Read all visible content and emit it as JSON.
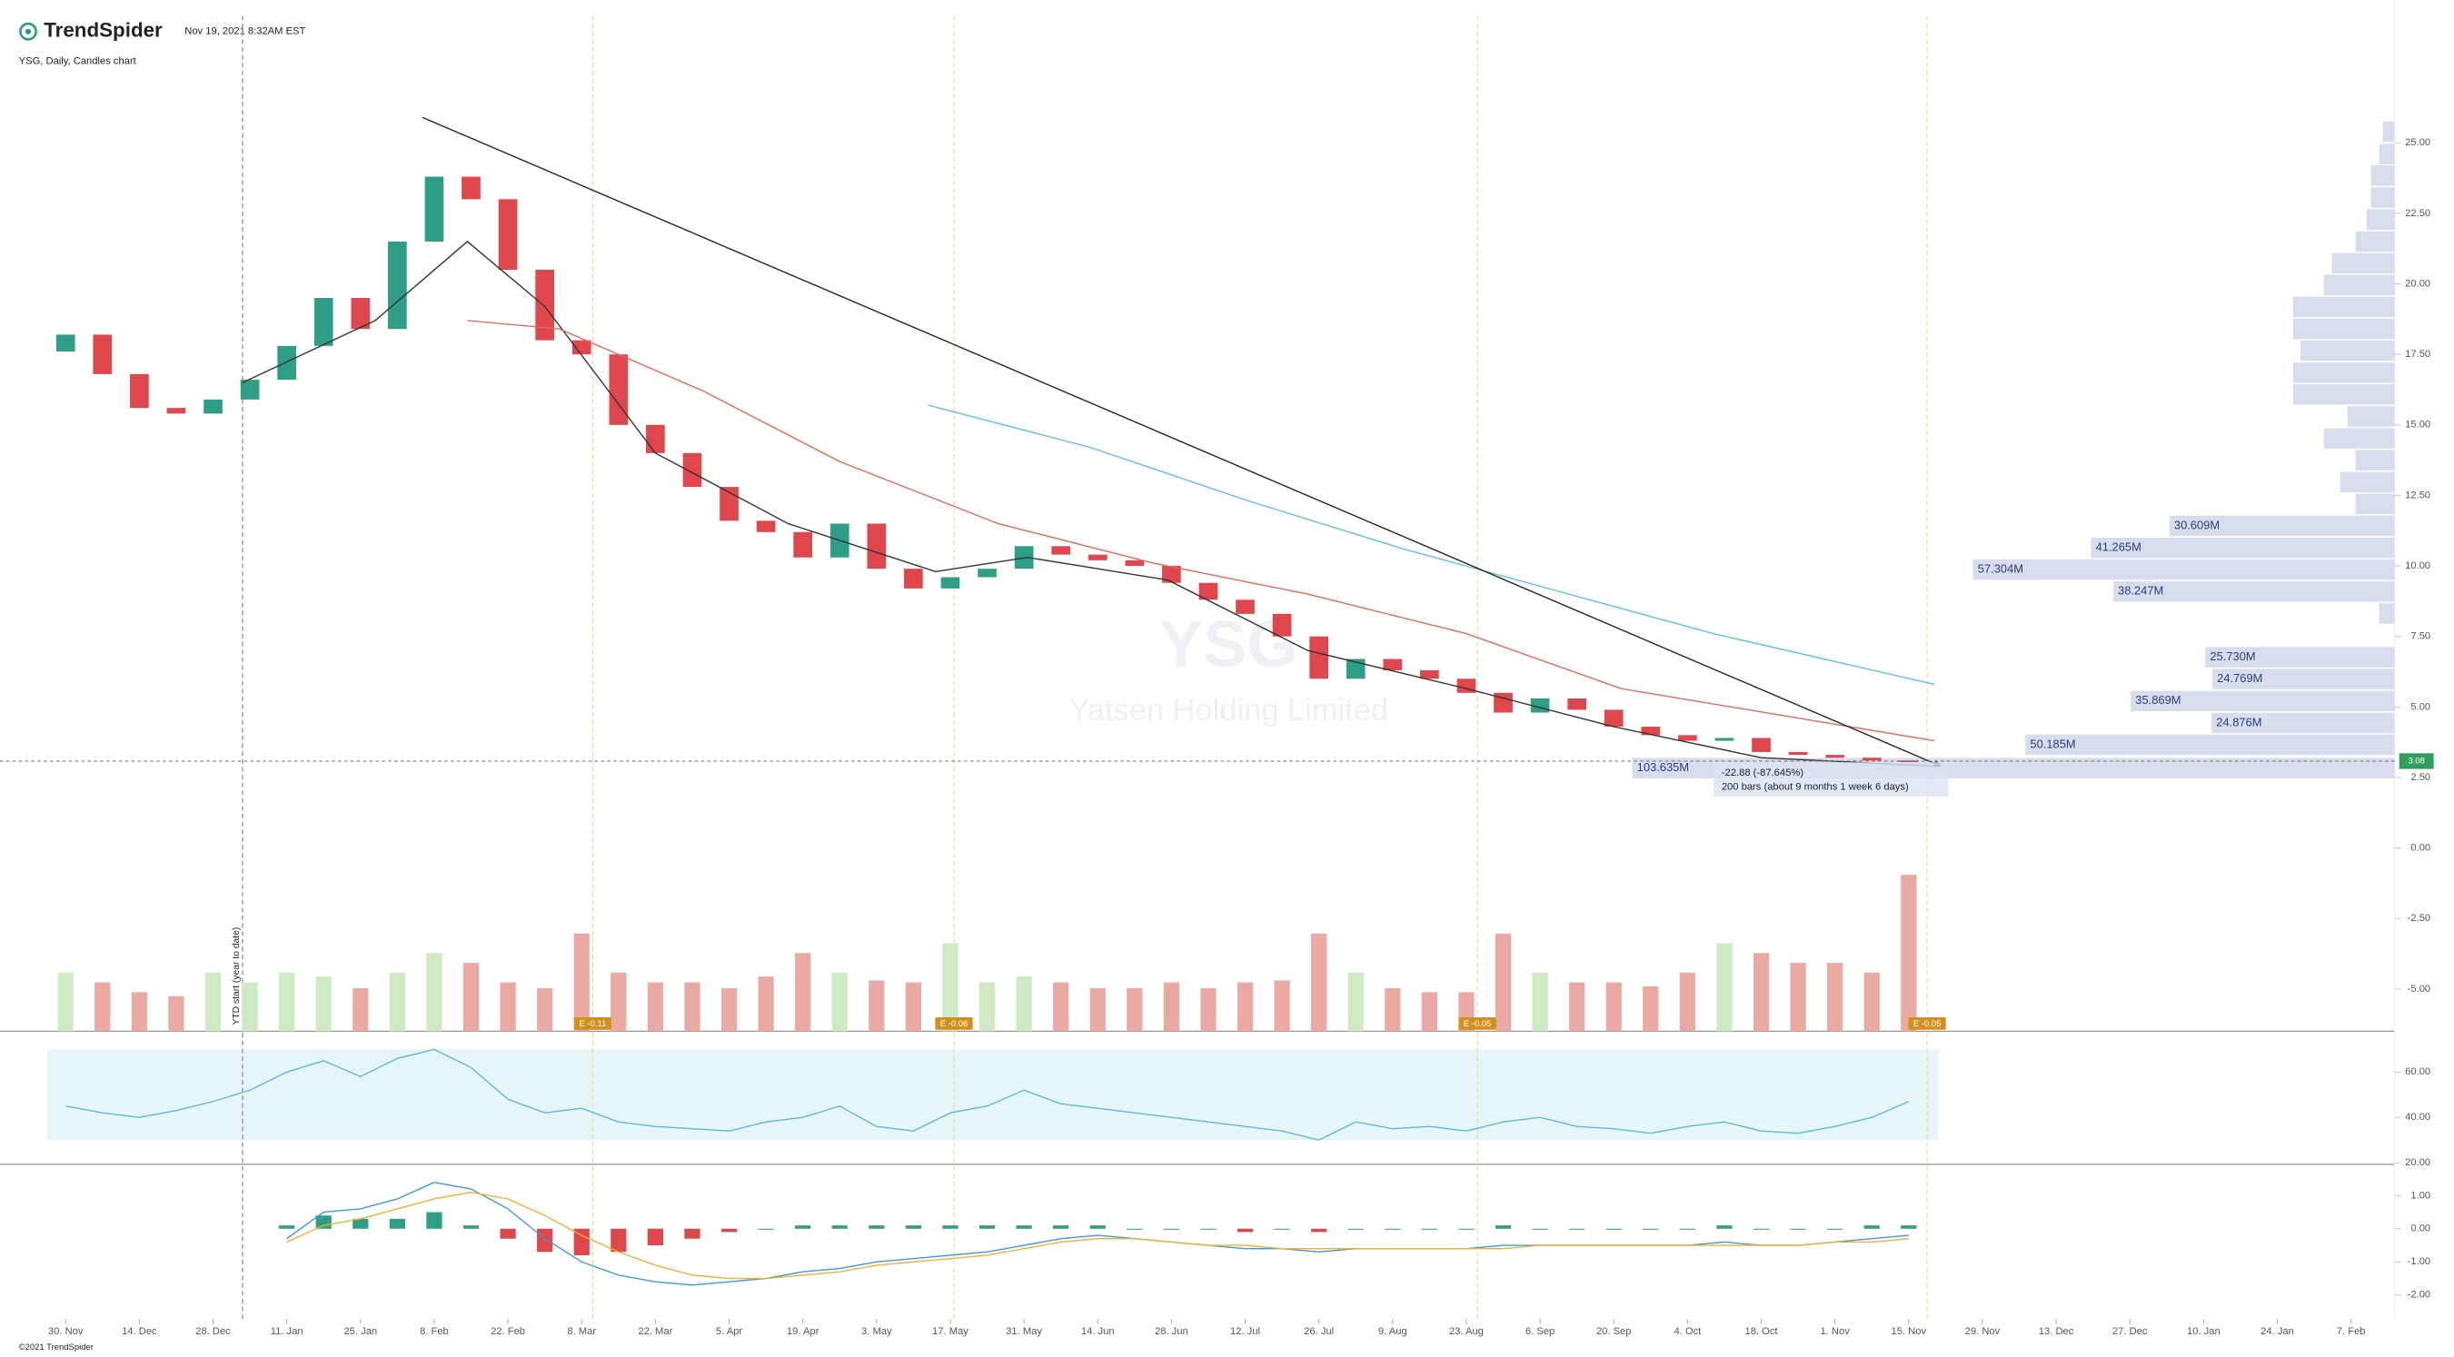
{
  "header": {
    "brand": "TrendSpider",
    "timestamp": "Nov 19, 2021 8:32AM EST",
    "chart_label": "YSG, Daily, Candles chart",
    "footer": "©2021 TrendSpider"
  },
  "chart_data": {
    "type": "candlestick",
    "watermark": {
      "symbol": "YSG",
      "name": "Yatsen Holding Limited"
    },
    "xlim": [
      -1.78,
      63.18
    ],
    "xticks": [
      {
        "value": 0,
        "label": "30. Nov"
      },
      {
        "value": 2,
        "label": "14. Dec"
      },
      {
        "value": 4,
        "label": "28. Dec"
      },
      {
        "value": 6,
        "label": "11. Jan"
      },
      {
        "value": 8,
        "label": "25. Jan"
      },
      {
        "value": 10,
        "label": "8. Feb"
      },
      {
        "value": 12,
        "label": "22. Feb"
      },
      {
        "value": 14,
        "label": "8. Mar"
      },
      {
        "value": 16,
        "label": "22. Mar"
      },
      {
        "value": 18,
        "label": "5. Apr"
      },
      {
        "value": 20,
        "label": "19. Apr"
      },
      {
        "value": 22,
        "label": "3. May"
      },
      {
        "value": 24,
        "label": "17. May"
      },
      {
        "value": 26,
        "label": "31. May"
      },
      {
        "value": 28,
        "label": "14. Jun"
      },
      {
        "value": 30,
        "label": "28. Jun"
      },
      {
        "value": 32,
        "label": "12. Jul"
      },
      {
        "value": 34,
        "label": "26. Jul"
      },
      {
        "value": 36,
        "label": "9. Aug"
      },
      {
        "value": 38,
        "label": "23. Aug"
      },
      {
        "value": 40,
        "label": "6. Sep"
      },
      {
        "value": 42,
        "label": "20. Sep"
      },
      {
        "value": 44,
        "label": "4. Oct"
      },
      {
        "value": 46,
        "label": "18. Oct"
      },
      {
        "value": 48,
        "label": "1. Nov"
      },
      {
        "value": 50,
        "label": "15. Nov"
      },
      {
        "value": 52,
        "label": "29. Nov"
      },
      {
        "value": 54,
        "label": "13. Dec"
      },
      {
        "value": 56,
        "label": "27. Dec"
      },
      {
        "value": 58,
        "label": "10. Jan"
      },
      {
        "value": 60,
        "label": "24. Jan"
      },
      {
        "value": 62,
        "label": "7. Feb"
      }
    ],
    "ylim": [
      -6.5,
      29.5
    ],
    "yticks": [
      {
        "value": 25,
        "label": "25.00"
      },
      {
        "value": 22.5,
        "label": "22.50"
      },
      {
        "value": 20,
        "label": "20.00"
      },
      {
        "value": 17.5,
        "label": "17.50"
      },
      {
        "value": 15,
        "label": "15.00"
      },
      {
        "value": 12.5,
        "label": "12.50"
      },
      {
        "value": 10,
        "label": "10.00"
      },
      {
        "value": 7.5,
        "label": "7.50"
      },
      {
        "value": 5,
        "label": "5.00"
      },
      {
        "value": 2.5,
        "label": "2.50"
      },
      {
        "value": 0,
        "label": "0.00"
      },
      {
        "value": -2.5,
        "label": "-2.50"
      },
      {
        "value": -5,
        "label": "-5.00"
      }
    ],
    "open": [
      17.6,
      18.2,
      16.8,
      15.6,
      15.4,
      15.9,
      16.6,
      17.8,
      19.5,
      18.4,
      21.5,
      23.8,
      23.0,
      20.5,
      18.0,
      17.5,
      15.0,
      14.0,
      12.8,
      11.6,
      11.2,
      10.3,
      11.5,
      9.9,
      9.2,
      9.6,
      9.9,
      10.7,
      10.4,
      10.2,
      10.0,
      9.4,
      8.8,
      8.3,
      7.5,
      6.0,
      6.7,
      6.3,
      6.0,
      5.5,
      4.8,
      5.3,
      4.9,
      4.3,
      4.0,
      3.8,
      3.9,
      3.4,
      3.3,
      3.2,
      3.1
    ],
    "close": [
      18.2,
      16.8,
      15.6,
      15.4,
      15.9,
      16.6,
      17.8,
      19.5,
      18.4,
      21.5,
      23.8,
      23.0,
      20.5,
      18.0,
      17.5,
      15.0,
      14.0,
      12.8,
      11.6,
      11.2,
      10.3,
      11.5,
      9.9,
      9.2,
      9.6,
      9.9,
      10.7,
      10.4,
      10.2,
      10.0,
      9.4,
      8.8,
      8.3,
      7.5,
      6.0,
      6.7,
      6.3,
      6.0,
      5.5,
      4.8,
      5.3,
      4.9,
      4.3,
      4.0,
      3.8,
      3.9,
      3.4,
      3.3,
      3.2,
      3.1,
      3.08
    ],
    "up_color": "#2e9e86",
    "down_color": "#e0474c",
    "volume": [
      3,
      2.5,
      2,
      1.8,
      3,
      2.5,
      3,
      2.8,
      2.2,
      3,
      4,
      3.5,
      2.5,
      2.2,
      5,
      3,
      2.5,
      2.5,
      2.2,
      2.8,
      4,
      3,
      2.6,
      2.5,
      4.5,
      2.5,
      2.8,
      2.5,
      2.2,
      2.2,
      2.5,
      2.2,
      2.5,
      2.6,
      5,
      3,
      2.2,
      2,
      2,
      5,
      3,
      2.5,
      2.5,
      2.3,
      3,
      4.5,
      4,
      3.5,
      3.5,
      3,
      8
    ],
    "lines": [
      {
        "color": "#333333",
        "x": [
          4.8,
          8.4,
          10.9,
          13,
          16,
          19.6,
          23.6,
          26.1,
          29.9,
          33.7,
          38,
          42,
          46,
          50.7
        ],
        "values": [
          16.5,
          18.7,
          21.5,
          19.2,
          14,
          11.5,
          9.8,
          10.3,
          9.5,
          7.0,
          5.65,
          4.3,
          3.2,
          2.9
        ]
      },
      {
        "color": "#e5675a",
        "x": [
          10.9,
          13.4,
          17.3,
          21,
          25.3,
          29.5,
          33.7,
          38,
          42.2,
          50.7
        ],
        "values": [
          18.7,
          18.4,
          16.2,
          13.7,
          11.5,
          10.1,
          9.0,
          7.6,
          5.65,
          3.8
        ]
      },
      {
        "color": "#5bc4dc",
        "x": [
          23.4,
          27.8,
          32.1,
          36.3,
          40.5,
          44.7,
          50.7
        ],
        "values": [
          15.7,
          14.2,
          12.3,
          10.6,
          9.1,
          7.6,
          5.8
        ]
      }
    ],
    "trendline": {
      "color": "#222222",
      "x": [
        9.68,
        50.87
      ],
      "values": [
        25.9,
        2.9
      ]
    },
    "last_price": {
      "value": 3.08,
      "color": "#2e9e5b"
    },
    "measure": {
      "change_label": "-22.88 (-87.645%)",
      "bars_label": "200 bars (about 9 months 1 week 6 days)"
    },
    "ytd_marker": {
      "x": 4.8,
      "label": "YTD start (year to date)"
    },
    "earnings": [
      {
        "x": 14.3,
        "label": "E -0.11"
      },
      {
        "x": 24.1,
        "label": "E -0.06"
      },
      {
        "x": 38.3,
        "label": "E -0.05"
      },
      {
        "x": 50.5,
        "label": "E -0.05"
      }
    ],
    "volume_profile": {
      "color": "#c9d1e6",
      "prices": [
        25.39,
        24.6,
        23.84,
        23.06,
        22.28,
        21.5,
        20.73,
        19.96,
        19.18,
        18.4,
        17.63,
        16.85,
        16.08,
        15.3,
        14.52,
        13.75,
        12.97,
        12.2,
        11.42,
        10.64,
        9.87,
        9.09,
        8.31,
        6.76,
        5.99,
        5.21,
        4.43,
        3.66,
        2.83
      ],
      "values": [
        1.6,
        2.1,
        3.2,
        3.2,
        3.8,
        5.3,
        8.5,
        9.6,
        13.8,
        13.8,
        12.8,
        13.8,
        13.8,
        6.4,
        9.6,
        5.3,
        7.4,
        5.3,
        30.609,
        41.265,
        57.304,
        38.247,
        2.1,
        25.73,
        24.769,
        35.869,
        24.876,
        50.185,
        103.635
      ],
      "value_labels": [
        null,
        null,
        null,
        null,
        null,
        null,
        null,
        null,
        null,
        null,
        null,
        null,
        null,
        null,
        null,
        null,
        null,
        null,
        "30.609M",
        "41.265M",
        "57.304M",
        "38.247M",
        null,
        "25.730M",
        "24.769M",
        "35.869M",
        "24.876M",
        "50.185M",
        "103.635M"
      ]
    },
    "rsi": {
      "color": "#5bb8d8",
      "ylim": [
        19.3,
        75.9
      ],
      "band": [
        30,
        70
      ],
      "yticks": [
        {
          "value": 60,
          "label": "60.00"
        },
        {
          "value": 40,
          "label": "40.00"
        },
        {
          "value": 20,
          "label": "20.00"
        }
      ],
      "values": [
        45,
        42,
        40,
        43,
        47,
        52,
        60,
        65,
        58,
        66,
        70,
        62,
        48,
        42,
        44,
        38,
        36,
        35,
        34,
        38,
        40,
        45,
        36,
        34,
        42,
        45,
        52,
        46,
        44,
        42,
        40,
        38,
        36,
        34,
        30,
        38,
        35,
        36,
        34,
        38,
        40,
        36,
        35,
        33,
        36,
        38,
        34,
        33,
        36,
        40,
        47
      ]
    },
    "macd": {
      "macd_color": "#3a9ad9",
      "signal_color": "#f0b030",
      "ylim": [
        -2.73,
        1.85
      ],
      "yticks": [
        {
          "value": 1,
          "label": "1.00"
        },
        {
          "value": 0,
          "label": "0.00"
        },
        {
          "value": -1,
          "label": "-1.00"
        },
        {
          "value": -2,
          "label": "-2.00"
        }
      ],
      "macd": [
        null,
        null,
        null,
        null,
        null,
        null,
        -0.3,
        0.5,
        0.6,
        0.9,
        1.4,
        1.2,
        0.6,
        -0.3,
        -1.0,
        -1.4,
        -1.6,
        -1.7,
        -1.6,
        -1.5,
        -1.3,
        -1.2,
        -1.0,
        -0.9,
        -0.8,
        -0.7,
        -0.5,
        -0.3,
        -0.2,
        -0.3,
        -0.4,
        -0.5,
        -0.6,
        -0.6,
        -0.7,
        -0.6,
        -0.6,
        -0.6,
        -0.6,
        -0.5,
        -0.5,
        -0.5,
        -0.5,
        -0.5,
        -0.5,
        -0.4,
        -0.5,
        -0.5,
        -0.4,
        -0.3,
        -0.2
      ],
      "signal": [
        null,
        null,
        null,
        null,
        null,
        null,
        -0.4,
        0.1,
        0.3,
        0.6,
        0.9,
        1.1,
        0.9,
        0.4,
        -0.2,
        -0.7,
        -1.1,
        -1.4,
        -1.5,
        -1.5,
        -1.4,
        -1.3,
        -1.1,
        -1.0,
        -0.9,
        -0.8,
        -0.6,
        -0.4,
        -0.3,
        -0.3,
        -0.4,
        -0.5,
        -0.5,
        -0.6,
        -0.6,
        -0.6,
        -0.6,
        -0.6,
        -0.6,
        -0.6,
        -0.5,
        -0.5,
        -0.5,
        -0.5,
        -0.5,
        -0.5,
        -0.5,
        -0.5,
        -0.4,
        -0.4,
        -0.3
      ],
      "histogram": [
        null,
        null,
        null,
        null,
        null,
        null,
        0.1,
        0.4,
        0.3,
        0.3,
        0.5,
        0.1,
        -0.3,
        -0.7,
        -0.8,
        -0.7,
        -0.5,
        -0.3,
        -0.1,
        0,
        0.1,
        0.1,
        0.1,
        0.1,
        0.1,
        0.1,
        0.1,
        0.1,
        0.1,
        0,
        0,
        0,
        -0.1,
        0,
        -0.1,
        0,
        0,
        0,
        0,
        0.1,
        0,
        0,
        0,
        0,
        0,
        0.1,
        0,
        0,
        0,
        0.1,
        0.1
      ]
    }
  }
}
